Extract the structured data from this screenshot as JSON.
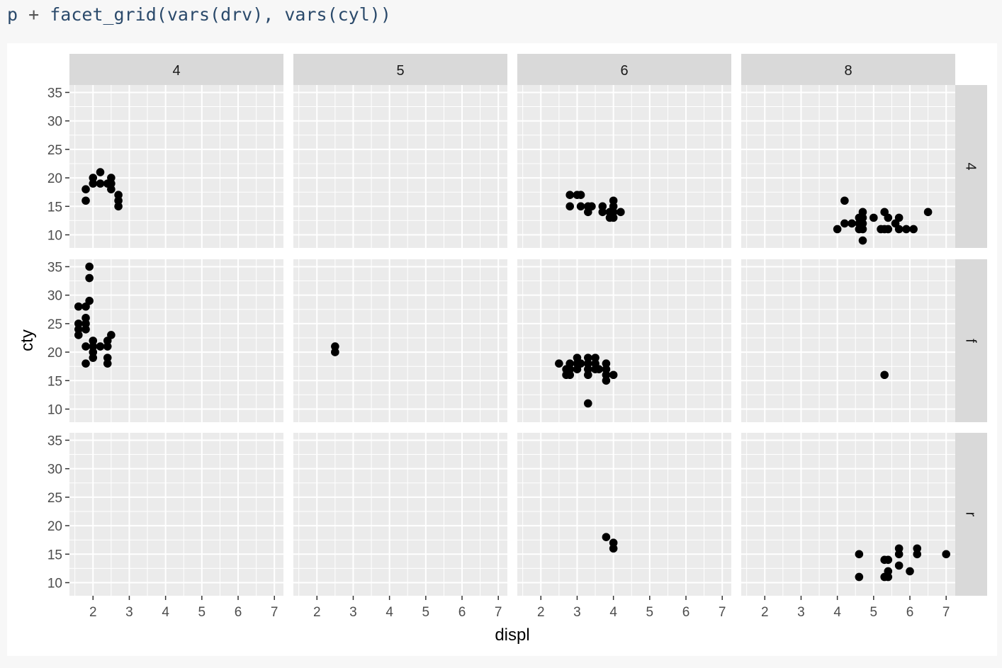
{
  "code": {
    "object": "p",
    "operator": "+",
    "call": "facet_grid(vars(drv), vars(cyl))"
  },
  "chart_data": {
    "type": "scatter",
    "title": "",
    "xlabel": "displ",
    "ylabel": "cty",
    "xlim": [
      1.35,
      7.25
    ],
    "ylim": [
      7.7,
      36.3
    ],
    "x_ticks": [
      2,
      3,
      4,
      5,
      6,
      7
    ],
    "y_ticks": [
      10,
      15,
      20,
      25,
      30,
      35
    ],
    "grid": true,
    "col_facets": [
      "4",
      "5",
      "6",
      "8"
    ],
    "row_facets": [
      "4",
      "f",
      "r"
    ],
    "panels": [
      {
        "row": "4",
        "col": "4",
        "points": [
          [
            1.8,
            18
          ],
          [
            1.8,
            16
          ],
          [
            2.0,
            20
          ],
          [
            2.0,
            19
          ],
          [
            2.2,
            21
          ],
          [
            2.2,
            19
          ],
          [
            2.4,
            19
          ],
          [
            2.5,
            20
          ],
          [
            2.5,
            19
          ],
          [
            2.5,
            18
          ],
          [
            2.7,
            17
          ],
          [
            2.7,
            16
          ],
          [
            2.7,
            15
          ]
        ]
      },
      {
        "row": "4",
        "col": "5",
        "points": []
      },
      {
        "row": "4",
        "col": "6",
        "points": [
          [
            2.8,
            17
          ],
          [
            2.8,
            15
          ],
          [
            3.0,
            17
          ],
          [
            3.1,
            17
          ],
          [
            3.1,
            15
          ],
          [
            3.3,
            15
          ],
          [
            3.3,
            14
          ],
          [
            3.4,
            15
          ],
          [
            3.7,
            15
          ],
          [
            3.7,
            14
          ],
          [
            3.9,
            14
          ],
          [
            3.9,
            13
          ],
          [
            4.0,
            16
          ],
          [
            4.0,
            15
          ],
          [
            4.0,
            14
          ],
          [
            4.0,
            13
          ],
          [
            4.2,
            14
          ]
        ]
      },
      {
        "row": "4",
        "col": "8",
        "points": [
          [
            4.0,
            11
          ],
          [
            4.2,
            16
          ],
          [
            4.2,
            12
          ],
          [
            4.4,
            12
          ],
          [
            4.6,
            13
          ],
          [
            4.6,
            12
          ],
          [
            4.6,
            11
          ],
          [
            4.7,
            14
          ],
          [
            4.7,
            13
          ],
          [
            4.7,
            12
          ],
          [
            4.7,
            11
          ],
          [
            4.7,
            9
          ],
          [
            5.0,
            13
          ],
          [
            5.2,
            11
          ],
          [
            5.3,
            14
          ],
          [
            5.3,
            11
          ],
          [
            5.4,
            13
          ],
          [
            5.4,
            11
          ],
          [
            5.6,
            12
          ],
          [
            5.7,
            13
          ],
          [
            5.7,
            11
          ],
          [
            5.9,
            11
          ],
          [
            6.1,
            11
          ],
          [
            6.5,
            14
          ]
        ]
      },
      {
        "row": "f",
        "col": "4",
        "points": [
          [
            1.6,
            25
          ],
          [
            1.6,
            24
          ],
          [
            1.6,
            23
          ],
          [
            1.8,
            28
          ],
          [
            1.8,
            26
          ],
          [
            1.8,
            25
          ],
          [
            1.8,
            24
          ],
          [
            1.8,
            21
          ],
          [
            1.8,
            18
          ],
          [
            1.9,
            35
          ],
          [
            1.9,
            33
          ],
          [
            1.9,
            29
          ],
          [
            1.6,
            28
          ],
          [
            2.0,
            22
          ],
          [
            2.0,
            21
          ],
          [
            2.0,
            20
          ],
          [
            2.0,
            19
          ],
          [
            2.2,
            21
          ],
          [
            2.4,
            22
          ],
          [
            2.4,
            21
          ],
          [
            2.4,
            19
          ],
          [
            2.4,
            18
          ],
          [
            2.5,
            23
          ]
        ]
      },
      {
        "row": "f",
        "col": "5",
        "points": [
          [
            2.5,
            21
          ],
          [
            2.5,
            20
          ]
        ]
      },
      {
        "row": "f",
        "col": "6",
        "points": [
          [
            2.5,
            18
          ],
          [
            2.7,
            17
          ],
          [
            2.7,
            16
          ],
          [
            2.8,
            18
          ],
          [
            2.8,
            17
          ],
          [
            2.8,
            16
          ],
          [
            3.0,
            19
          ],
          [
            3.0,
            18
          ],
          [
            3.0,
            17
          ],
          [
            3.1,
            18
          ],
          [
            3.3,
            19
          ],
          [
            3.3,
            18
          ],
          [
            3.3,
            17
          ],
          [
            3.3,
            16
          ],
          [
            3.3,
            11
          ],
          [
            3.5,
            19
          ],
          [
            3.5,
            18
          ],
          [
            3.5,
            17
          ],
          [
            3.6,
            17
          ],
          [
            3.8,
            18
          ],
          [
            3.8,
            17
          ],
          [
            3.8,
            16
          ],
          [
            3.8,
            15
          ],
          [
            4.0,
            16
          ]
        ]
      },
      {
        "row": "f",
        "col": "8",
        "points": [
          [
            5.3,
            16
          ]
        ]
      },
      {
        "row": "r",
        "col": "4",
        "points": []
      },
      {
        "row": "r",
        "col": "5",
        "points": []
      },
      {
        "row": "r",
        "col": "6",
        "points": [
          [
            3.8,
            18
          ],
          [
            4.0,
            17
          ],
          [
            4.0,
            16
          ]
        ]
      },
      {
        "row": "r",
        "col": "8",
        "points": [
          [
            4.6,
            15
          ],
          [
            4.6,
            11
          ],
          [
            5.3,
            14
          ],
          [
            5.3,
            11
          ],
          [
            5.4,
            14
          ],
          [
            5.4,
            12
          ],
          [
            5.4,
            11
          ],
          [
            5.7,
            16
          ],
          [
            5.7,
            15
          ],
          [
            5.7,
            13
          ],
          [
            6.0,
            12
          ],
          [
            6.2,
            16
          ],
          [
            6.2,
            15
          ],
          [
            7.0,
            15
          ]
        ]
      }
    ]
  }
}
